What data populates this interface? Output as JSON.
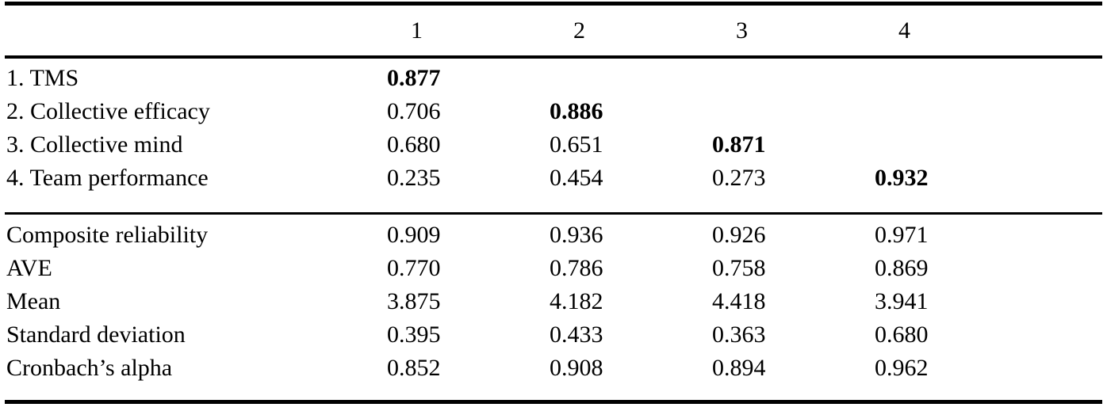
{
  "table": {
    "column_headers": [
      "1",
      "2",
      "3",
      "4"
    ],
    "corr": [
      {
        "label": "1. TMS",
        "values": [
          "0.877",
          "",
          "",
          ""
        ]
      },
      {
        "label": "2. Collective efficacy",
        "values": [
          "0.706",
          "0.886",
          "",
          ""
        ]
      },
      {
        "label": "3. Collective mind",
        "values": [
          "0.680",
          "0.651",
          "0.871",
          ""
        ]
      },
      {
        "label": "4. Team performance",
        "values": [
          "0.235",
          "0.454",
          "0.273",
          "0.932"
        ]
      }
    ],
    "stats": [
      {
        "label": "Composite reliability",
        "values": [
          "0.909",
          "0.936",
          "0.926",
          "0.971"
        ]
      },
      {
        "label": "AVE",
        "values": [
          "0.770",
          "0.786",
          "0.758",
          "0.869"
        ]
      },
      {
        "label": "Mean",
        "values": [
          "3.875",
          "4.182",
          "4.418",
          "3.941"
        ]
      },
      {
        "label": "Standard deviation",
        "values": [
          "0.395",
          "0.433",
          "0.363",
          "0.680"
        ]
      },
      {
        "label": "Cronbach’s alpha",
        "values": [
          "0.852",
          "0.908",
          "0.894",
          "0.962"
        ]
      }
    ]
  }
}
